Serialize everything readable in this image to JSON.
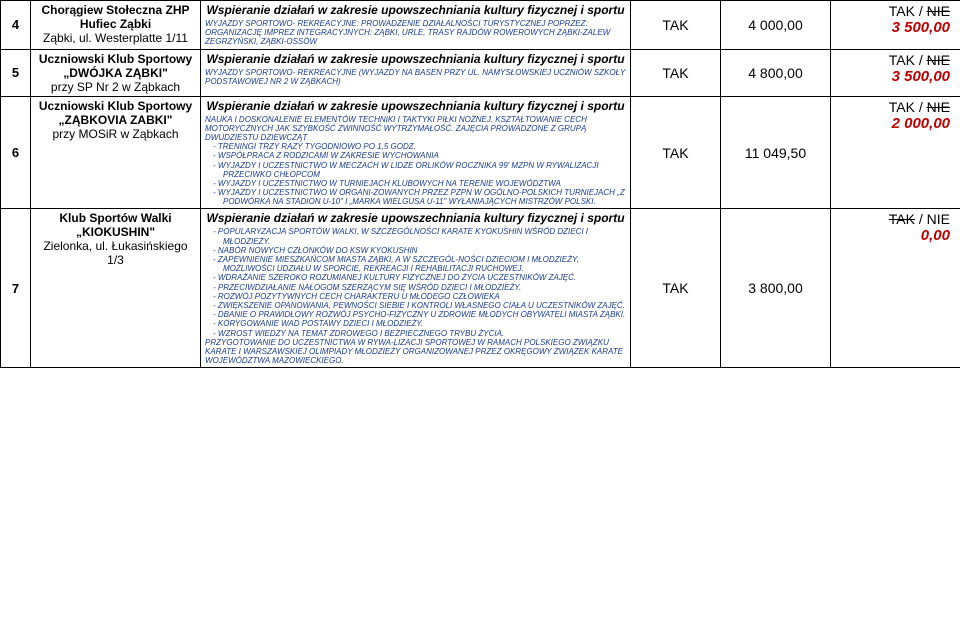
{
  "rows": [
    {
      "num": "4",
      "org_lines": [
        "Chorągiew Stołeczna ZHP",
        "Hufiec Ząbki",
        "Ząbki, ul. Westerplatte 1/11"
      ],
      "title": "Wspieranie działań w zakresie upowszechniania kultury fizycznej i sportu",
      "body": "WYJAZDY SPORTOWO- REKREACYJNE: PROWADZENIE DZIAŁALNOŚCI TURYSTYCZNEJ POPRZEZ: ORGANIZACJĘ IMPREZ INTEGRACYJNYCH: ZĄBKI, URLE, TRASY RAJDÓW ROWEROWYCH ZĄBKI-ZALEW ZEGRZYŃSKI, ZĄBKI-OSSÓW",
      "tak": "TAK",
      "amount": "4 000,00",
      "dec_yn": "TAK / ",
      "dec_strike": "NIE",
      "dec_amount": "3 500,00",
      "tak_strike": false
    },
    {
      "num": "5",
      "org_lines": [
        "Uczniowski Klub Sportowy",
        "„DWÓJKA ZĄBKI\"",
        "przy SP Nr 2 w Ząbkach"
      ],
      "title": "Wspieranie działań w zakresie upowszechniania kultury fizycznej i sportu",
      "body": "WYJAZDY SPORTOWO- REKREACYJNE (WYJAZDY NA BASEN PRZY UL. NAMYSŁOWSKIEJ UCZNIÓW SZKOŁY PODSTAWOWEJ NR 2 W ZĄBKACH)",
      "tak": "TAK",
      "amount": "4 800,00",
      "dec_yn": "TAK / ",
      "dec_strike": "NIE",
      "dec_amount": "3 500,00",
      "tak_strike": false
    },
    {
      "num": "6",
      "org_lines": [
        "Uczniowski Klub Sportowy",
        "„ZĄBKOVIA ZABKI\"",
        "przy MOSiR w Ząbkach"
      ],
      "title": "Wspieranie działań w zakresie upowszechniania kultury fizycznej i sportu",
      "body_parts": {
        "intro": "NAUKA I DOSKONALENIE ELEMENTÓW TECHNIKI I TAKTYKI PIŁKI NOŻNEJ. KSZTAŁTOWANIE CECH MOTORYCZNYCH JAK SZYBKOŚĆ ZWINNOŚĆ WYTRZYMAŁOŚĆ. ZAJĘCIA PROWADZONE Z GRUPĄ DWUDZIESTU DZIEWCZĄT",
        "bullets": [
          "TRENINGI TRZY RAZY TYGODNIOWO PO 1,5 GODZ.",
          "WSPÓŁPRACA Z RODZICAMI W ZAKRESIE WYCHOWANIA",
          "WYJAZDY I UCZESTNICTWO W MECZACH W LIDZE ORLIKÓW ROCZNIKA 99' MZPN W RYWALIZACJI PRZECIWKO CHŁOPCOM",
          "WYJAZDY I UCZESTNICTWO W TURNIEJACH KLUBOWYCH NA TERENIE WOJEWÓDZTWA",
          "WYJAZDY I UCZESTNICTWO W ORGANI-ZOWANYCH PRZEZ PZPN W OGÓLNO-POLSKICH TURNIEJACH „Z PODWÓRKA NA STADION U-10\" I „MARKA WIELGUSA U-11\" WYŁANIAJĄCYCH MISTRZÓW POLSKI."
        ]
      },
      "tak": "TAK",
      "amount": "11 049,50",
      "dec_yn": "TAK / ",
      "dec_strike": "NIE",
      "dec_amount": "2 000,00",
      "tak_strike": false
    },
    {
      "num": "7",
      "org_lines": [
        "Klub Sportów Walki",
        "„KIOKUSHIN\"",
        "Zielonka, ul. Łukasińskiego 1/3"
      ],
      "title": "Wspieranie działań w zakresie upowszechniania kultury fizycznej i sportu",
      "body_parts": {
        "bullets": [
          "POPULARYZACJA SPORTÓW WALKI, W SZCZEGÓLNOŚCI KARATE KYOKUSHIN WŚRÓD DZIECI I MŁODZIEŻY.",
          "NABÓR NOWYCH CZŁONKÓW DO KSW KYOKUSHIN",
          "ZAPEWNIENIE MIESZKAŃCOM MIASTA ZĄBKI, A W SZCZEGÓL-NOŚCI DZIECIOM I MŁODZIEŻY, MOŻLIWOŚCI UDZIAŁU W SPORCIE, REKREACJI I REHABILITACJI RUCHOWEJ.",
          "WDRAŻANIE SZEROKO ROZUMIANEJ KULTURY FIZYCZNEJ DO ŻYCIA UCZESTNIKÓW ZAJĘĆ.",
          "PRZECIWDZIAŁANIE NAŁOGOM SZERZĄCYM SIĘ WŚRÓD DZIECI I MŁODZIEŻY.",
          "ROZWÓJ POZYTYWNYCH CECH CHARAKTERU U MŁODEGO CZŁOWIEKA",
          "ZWIĘKSZENIE OPANOWANIA, PEWNOŚCI SIEBIE I KONTROLI WŁASNEGO CIAŁA U UCZESTNIKÓW ZAJĘĆ.",
          "DBANIE O PRAWIDŁOWY ROZWÓJ PSYCHO-FIZYCZNY U ZDROWIE MŁODYCH OBYWATELI MIASTA ZĄBKI.",
          "KORYGOWANIE WAD POSTAWY DZIECI I MŁODZIEŻY.",
          "WZROST WIEDZY NA TEMAT ZDROWEGO I BEZPIECZNEGO TRYBU ŻYCIA."
        ],
        "outro": "PRZYGOTOWANIE DO UCZESTNICTWA W RYWA-LIZACJI SPORTOWEJ W RAMACH POLSKIEGO ZWIĄZKU KARATE I WARSZAWSKIEJ OLIMPIADY MŁODZIEŻY ORGANIZOWANEJ PRZEZ OKRĘGOWY ZWIĄZEK KARATE WOJEWÓDZTWA MAZOWIECKIEGO."
      },
      "tak": "TAK",
      "amount": "3 800,00",
      "dec_yn_strike": "TAK",
      "dec_yn_rest": " / NIE",
      "dec_amount": "0,00",
      "tak_strike": true
    }
  ],
  "colors": {
    "blue": "#1a3d8f",
    "red": "#c00000"
  }
}
